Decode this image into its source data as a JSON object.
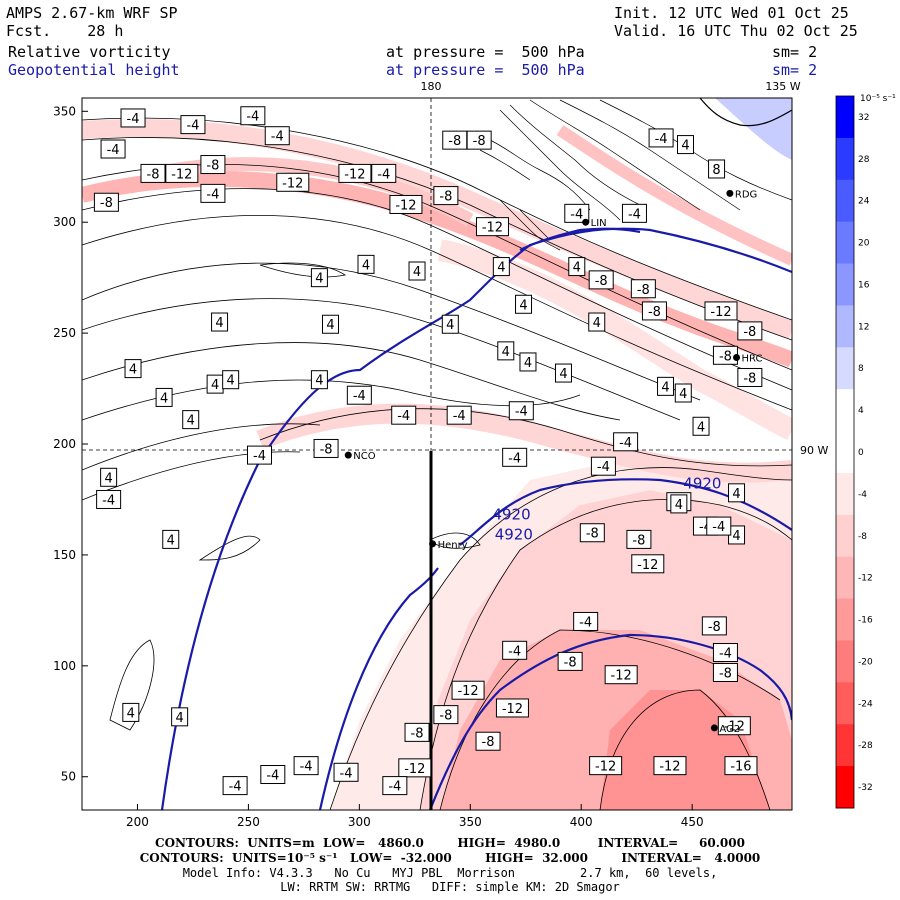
{
  "header": {
    "model": "AMPS 2.67-km WRF SP",
    "forecast_label": "Fcst.",
    "forecast_hours": "28 h",
    "init": "Init. 12 UTC Wed 01 Oct 25",
    "valid": "Valid. 16 UTC Thu 02 Oct 25",
    "field1_name": "Relative vorticity",
    "field1_level": "at pressure =  500 hPa",
    "field1_sm": "sm= 2",
    "field2_name": "Geopotential height",
    "field2_level": "at pressure =  500 hPa",
    "field2_sm": "sm= 2"
  },
  "map": {
    "lon_top_left": "180",
    "lon_top_right": "135 W",
    "lon_right": "90 W",
    "x_ticks": [
      "200",
      "250",
      "300",
      "350",
      "400",
      "450"
    ],
    "y_ticks": [
      "350",
      "300",
      "250",
      "200",
      "150",
      "100",
      "50"
    ],
    "stations": [
      {
        "label": "NCO",
        "x": 295,
        "y": 195
      },
      {
        "label": "Henry",
        "x": 333,
        "y": 155
      },
      {
        "label": "AG2",
        "x": 460,
        "y": 72
      },
      {
        "label": "RDG",
        "x": 467,
        "y": 313
      },
      {
        "label": "LIN",
        "x": 402,
        "y": 300
      },
      {
        "label": "HRC",
        "x": 470,
        "y": 239
      }
    ],
    "height_labels": [
      {
        "text": "4920",
        "x": 361,
        "y": 157
      },
      {
        "text": "4920",
        "x": 360,
        "y": 166
      },
      {
        "text": "4920",
        "x": 446,
        "y": 180
      }
    ],
    "vort_labels": [
      {
        "text": "-4",
        "x": 198,
        "y": 347
      },
      {
        "text": "-4",
        "x": 225,
        "y": 344
      },
      {
        "text": "-4",
        "x": 252,
        "y": 348
      },
      {
        "text": "-4",
        "x": 263,
        "y": 339
      },
      {
        "text": "-4",
        "x": 189,
        "y": 333
      },
      {
        "text": "-8",
        "x": 207,
        "y": 322
      },
      {
        "text": "-12",
        "x": 220,
        "y": 322
      },
      {
        "text": "-8",
        "x": 234,
        "y": 326
      },
      {
        "text": "-12",
        "x": 270,
        "y": 318
      },
      {
        "text": "-12",
        "x": 298,
        "y": 322
      },
      {
        "text": "-4",
        "x": 311,
        "y": 322
      },
      {
        "text": "-8",
        "x": 186,
        "y": 309
      },
      {
        "text": "-4",
        "x": 234,
        "y": 313
      },
      {
        "text": "-12",
        "x": 321,
        "y": 308
      },
      {
        "text": "-8",
        "x": 339,
        "y": 312
      },
      {
        "text": "-8",
        "x": 343,
        "y": 337
      },
      {
        "text": "-8",
        "x": 354,
        "y": 337
      },
      {
        "text": "-4",
        "x": 398,
        "y": 304
      },
      {
        "text": "-4",
        "x": 424,
        "y": 304
      },
      {
        "text": "-4",
        "x": 436,
        "y": 338
      },
      {
        "text": "4",
        "x": 447,
        "y": 335
      },
      {
        "text": "8",
        "x": 461,
        "y": 324
      },
      {
        "text": "-12",
        "x": 360,
        "y": 298
      },
      {
        "text": "4",
        "x": 282,
        "y": 275
      },
      {
        "text": "4",
        "x": 303,
        "y": 281
      },
      {
        "text": "4",
        "x": 326,
        "y": 278
      },
      {
        "text": "4",
        "x": 364,
        "y": 280
      },
      {
        "text": "4",
        "x": 398,
        "y": 280
      },
      {
        "text": "-8",
        "x": 409,
        "y": 274
      },
      {
        "text": "-8",
        "x": 428,
        "y": 270
      },
      {
        "text": "-8",
        "x": 433,
        "y": 260
      },
      {
        "text": "-12",
        "x": 463,
        "y": 260
      },
      {
        "text": "-8",
        "x": 476,
        "y": 251
      },
      {
        "text": "4",
        "x": 374,
        "y": 263
      },
      {
        "text": "4",
        "x": 407,
        "y": 255
      },
      {
        "text": "4",
        "x": 237,
        "y": 255
      },
      {
        "text": "4",
        "x": 287,
        "y": 254
      },
      {
        "text": "4",
        "x": 341,
        "y": 254
      },
      {
        "text": "4",
        "x": 366,
        "y": 242
      },
      {
        "text": "4",
        "x": 376,
        "y": 237
      },
      {
        "text": "4",
        "x": 392,
        "y": 232
      },
      {
        "text": "4",
        "x": 438,
        "y": 226
      },
      {
        "text": "4",
        "x": 446,
        "y": 223
      },
      {
        "text": "-8",
        "x": 476,
        "y": 230
      },
      {
        "text": "-8",
        "x": 465,
        "y": 240
      },
      {
        "text": "4",
        "x": 198,
        "y": 234
      },
      {
        "text": "4",
        "x": 235,
        "y": 227
      },
      {
        "text": "4",
        "x": 212,
        "y": 221
      },
      {
        "text": "4",
        "x": 242,
        "y": 229
      },
      {
        "text": "4",
        "x": 282,
        "y": 229
      },
      {
        "text": "-4",
        "x": 300,
        "y": 222
      },
      {
        "text": "4",
        "x": 224,
        "y": 211
      },
      {
        "text": "-4",
        "x": 320,
        "y": 213
      },
      {
        "text": "-4",
        "x": 345,
        "y": 213
      },
      {
        "text": "-4",
        "x": 373,
        "y": 215
      },
      {
        "text": "-4",
        "x": 420,
        "y": 201
      },
      {
        "text": "4",
        "x": 454,
        "y": 208
      },
      {
        "text": "-8",
        "x": 285,
        "y": 198
      },
      {
        "text": "-4",
        "x": 255,
        "y": 195
      },
      {
        "text": "-4",
        "x": 370,
        "y": 194
      },
      {
        "text": "-4",
        "x": 410,
        "y": 190
      },
      {
        "text": "4",
        "x": 187,
        "y": 185
      },
      {
        "text": "-4",
        "x": 187,
        "y": 175
      },
      {
        "text": "-8",
        "x": 444,
        "y": 174
      },
      {
        "text": "4",
        "x": 444,
        "y": 173
      },
      {
        "text": "4",
        "x": 470,
        "y": 178
      },
      {
        "text": "-4",
        "x": 456,
        "y": 163
      },
      {
        "text": "4",
        "x": 470,
        "y": 159
      },
      {
        "text": "-4",
        "x": 462,
        "y": 163
      },
      {
        "text": "4",
        "x": 215,
        "y": 157
      },
      {
        "text": "-8",
        "x": 405,
        "y": 160
      },
      {
        "text": "-8",
        "x": 426,
        "y": 157
      },
      {
        "text": "-12",
        "x": 430,
        "y": 146
      },
      {
        "text": "-4",
        "x": 402,
        "y": 120
      },
      {
        "text": "-4",
        "x": 370,
        "y": 107
      },
      {
        "text": "-8",
        "x": 460,
        "y": 118
      },
      {
        "text": "-4",
        "x": 465,
        "y": 106
      },
      {
        "text": "-8",
        "x": 395,
        "y": 102
      },
      {
        "text": "-12",
        "x": 418,
        "y": 96
      },
      {
        "text": "-8",
        "x": 465,
        "y": 97
      },
      {
        "text": "-12",
        "x": 349,
        "y": 89
      },
      {
        "text": "-12",
        "x": 369,
        "y": 81
      },
      {
        "text": "-8",
        "x": 339,
        "y": 78
      },
      {
        "text": "-12",
        "x": 469,
        "y": 73
      },
      {
        "text": "4",
        "x": 197,
        "y": 79
      },
      {
        "text": "4",
        "x": 219,
        "y": 77
      },
      {
        "text": "-8",
        "x": 326,
        "y": 70
      },
      {
        "text": "-12",
        "x": 325,
        "y": 54
      },
      {
        "text": "-8",
        "x": 358,
        "y": 66
      },
      {
        "text": "-12",
        "x": 411,
        "y": 55
      },
      {
        "text": "-12",
        "x": 440,
        "y": 55
      },
      {
        "text": "-16",
        "x": 472,
        "y": 55
      },
      {
        "text": "-4",
        "x": 261,
        "y": 51
      },
      {
        "text": "-4",
        "x": 276,
        "y": 55
      },
      {
        "text": "-4",
        "x": 294,
        "y": 52
      },
      {
        "text": "-4",
        "x": 316,
        "y": 46
      },
      {
        "text": "-4",
        "x": 244,
        "y": 46
      }
    ]
  },
  "colorbar": {
    "unit": "10⁻⁵ s⁻¹",
    "labels": [
      "32",
      "28",
      "24",
      "20",
      "16",
      "12",
      "8",
      "4",
      "0",
      "-4",
      "-8",
      "-12",
      "-16",
      "-20",
      "-24",
      "-28",
      "-32"
    ],
    "colors": [
      "#0000ff",
      "#2b3bff",
      "#4a5cff",
      "#6a7bff",
      "#8b97ff",
      "#b0b8ff",
      "#d6daff",
      "#ffffff",
      "#ffffff",
      "#ffe8e8",
      "#ffd0d0",
      "#ffb6b6",
      "#ff9a9a",
      "#ff7c7c",
      "#ff5c5c",
      "#ff3434",
      "#ff0000"
    ]
  },
  "footer": {
    "line1": "CONTOURS:  UNITS=m  LOW=   4860.0        HIGH=  4980.0         INTERVAL=     60.000",
    "line2": "CONTOURS:  UNITS=10⁻⁵ s⁻¹   LOW=  -32.000        HIGH=  32.000        INTERVAL=   4.0000",
    "line3": "Model Info: V4.3.3   No Cu   MYJ PBL  Morrison         2.7 km,  60 levels,",
    "line4": "LW: RRTM SW: RRTMG   DIFF: simple KM: 2D Smagor"
  },
  "colors": {
    "height_contour": "#1a1aa8",
    "vort_positive_label": "#000000"
  }
}
